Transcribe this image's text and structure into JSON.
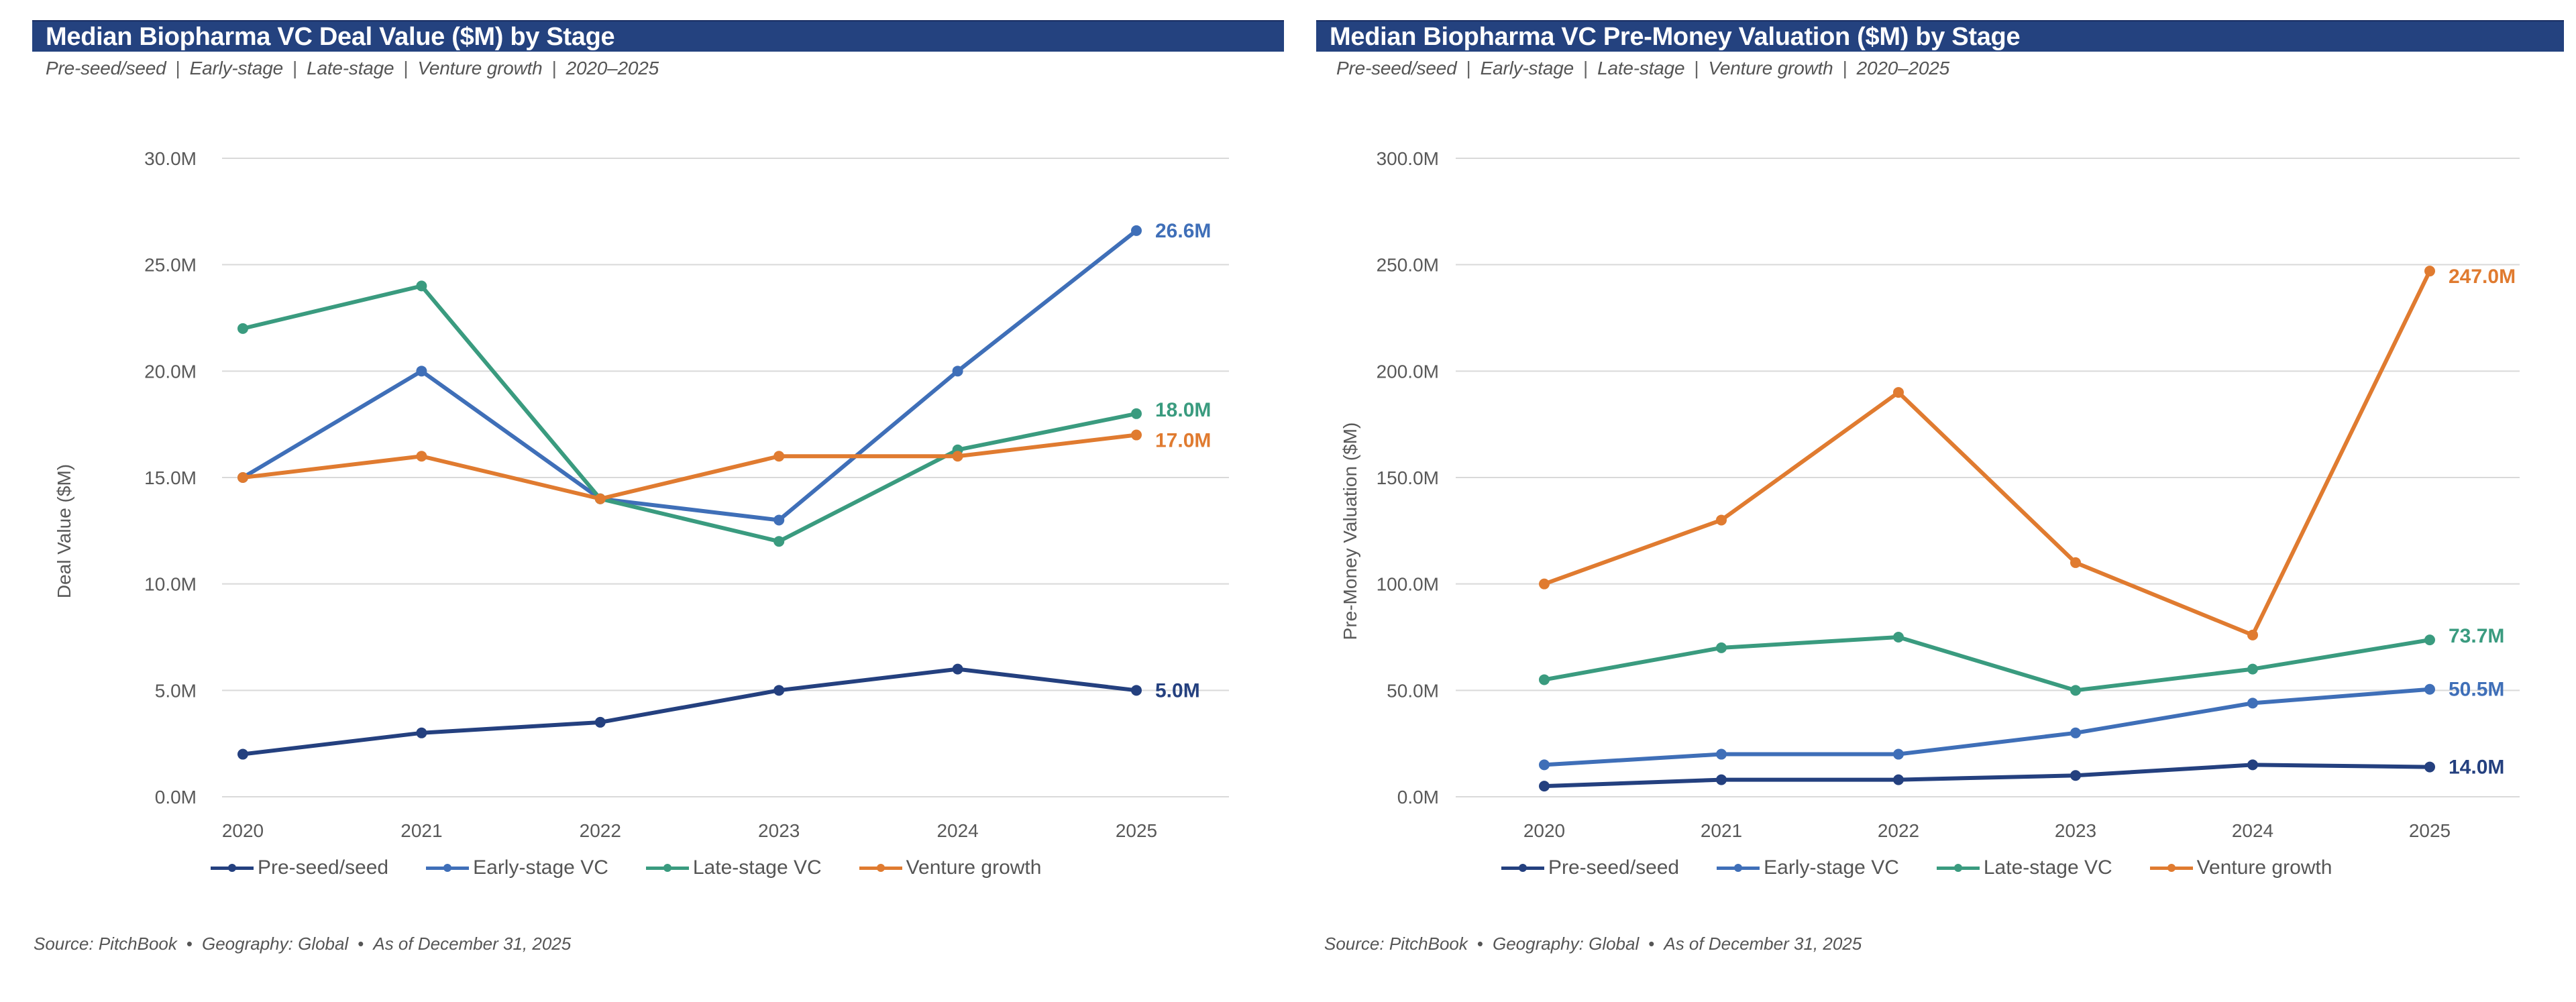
{
  "series_colors": {
    "Pre-seed/seed": "#24407f",
    "Early-stage VC": "#3f6fb8",
    "Late-stage VC": "#3a9b7f",
    "Venture growth": "#e07b30"
  },
  "title_bar_color": "#24427f",
  "subtitle_parts": [
    "Pre-seed/seed",
    "Early-stage",
    "Late-stage",
    "Venture growth",
    "2020–2025"
  ],
  "source_parts": [
    "Source: PitchBook",
    "Geography: Global",
    "As of December 31, 2025"
  ],
  "legend": [
    "Pre-seed/seed",
    "Early-stage VC",
    "Late-stage VC",
    "Venture growth"
  ],
  "chart_data": [
    {
      "type": "line",
      "title": "Median Biopharma VC Deal Value ($M) by Stage",
      "subtitle": "Pre-seed/seed | Early-stage | Late-stage | Venture growth | 2020–2025",
      "xlabel": "",
      "ylabel": "Deal Value ($M)",
      "x": [
        "2020",
        "2021",
        "2022",
        "2023",
        "2024",
        "2025"
      ],
      "ylim": [
        0,
        30
      ],
      "yticks": [
        0,
        5,
        10,
        15,
        20,
        25,
        30
      ],
      "ytick_labels": [
        "0.0M",
        "5.0M",
        "10.0M",
        "15.0M",
        "20.0M",
        "25.0M",
        "30.0M"
      ],
      "grid": true,
      "legend_position": "bottom",
      "series": [
        {
          "name": "Pre-seed/seed",
          "values": [
            2.0,
            3.0,
            3.5,
            5.0,
            6.0,
            5.0
          ],
          "end_label": "5.0M"
        },
        {
          "name": "Early-stage VC",
          "values": [
            15.0,
            20.0,
            14.0,
            13.0,
            20.0,
            26.6
          ],
          "end_label": "26.6M"
        },
        {
          "name": "Late-stage VC",
          "values": [
            22.0,
            24.0,
            14.0,
            12.0,
            16.3,
            18.0
          ],
          "end_label": "18.0M"
        },
        {
          "name": "Venture growth",
          "values": [
            15.0,
            16.0,
            14.0,
            16.0,
            16.0,
            17.0
          ],
          "end_label": "17.0M"
        }
      ],
      "source": "Source: PitchBook • Geography: Global • As of December 31, 2025"
    },
    {
      "type": "line",
      "title": "Median Biopharma VC Pre-Money Valuation ($M) by Stage",
      "subtitle": "Pre-seed/seed | Early-stage | Late-stage | Venture growth | 2020–2025",
      "xlabel": "",
      "ylabel": "Pre-Money Valuation ($M)",
      "x": [
        "2020",
        "2021",
        "2022",
        "2023",
        "2024",
        "2025"
      ],
      "ylim": [
        0,
        300
      ],
      "yticks": [
        0,
        50,
        100,
        150,
        200,
        250,
        300
      ],
      "ytick_labels": [
        "0.0M",
        "50.0M",
        "100.0M",
        "150.0M",
        "200.0M",
        "250.0M",
        "300.0M"
      ],
      "grid": true,
      "legend_position": "bottom",
      "series": [
        {
          "name": "Pre-seed/seed",
          "values": [
            5.0,
            8.0,
            8.0,
            10.0,
            15.0,
            14.0
          ],
          "end_label": "14.0M"
        },
        {
          "name": "Early-stage VC",
          "values": [
            15.0,
            20.0,
            20.0,
            30.0,
            44.0,
            50.5
          ],
          "end_label": "50.5M"
        },
        {
          "name": "Late-stage VC",
          "values": [
            55.0,
            70.0,
            75.0,
            50.0,
            60.0,
            73.7
          ],
          "end_label": "73.7M"
        },
        {
          "name": "Venture growth",
          "values": [
            100.0,
            130.0,
            190.0,
            110.0,
            76.0,
            247.0
          ],
          "end_label": "247.0M"
        }
      ],
      "source": "Source: PitchBook • Geography: Global • As of December 31, 2025"
    }
  ]
}
